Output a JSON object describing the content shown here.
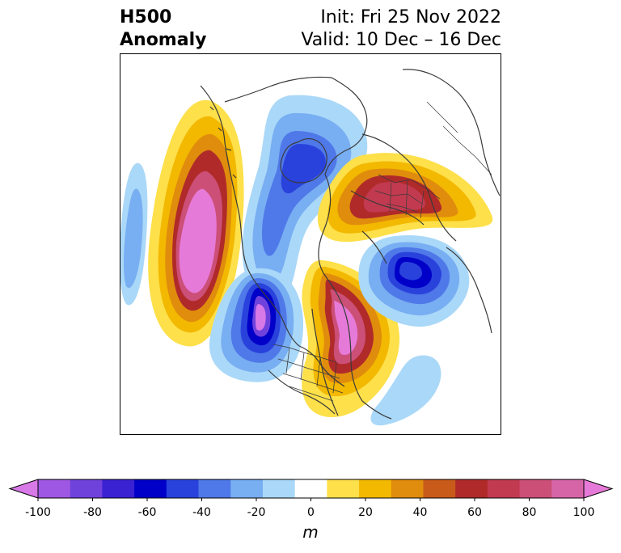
{
  "title": {
    "left_line1": "H500",
    "left_line2": "Anomaly",
    "right_line1": "Init: Fri 25 Nov 2022",
    "right_line2": "Valid: 10 Dec – 16 Dec"
  },
  "colorbar": {
    "unit": "m",
    "ticks": [
      "-100",
      "-80",
      "-60",
      "-40",
      "-20",
      "0",
      "20",
      "40",
      "60",
      "80",
      "100"
    ],
    "colors": [
      "#d779e6",
      "#9e57e2",
      "#7042dc",
      "#3a21d2",
      "#0000c8",
      "#2a42dc",
      "#4f78e8",
      "#78aef2",
      "#aad8f8",
      "#ffffff",
      "#fde04a",
      "#f3b800",
      "#e08c0d",
      "#c85a1a",
      "#b02a2a",
      "#c23a50",
      "#cc4f78",
      "#d665a8",
      "#e67ad8"
    ]
  },
  "map": {
    "projection": "north polar stereographic",
    "features": [
      "coastlines",
      "country borders",
      "US state borders"
    ]
  }
}
